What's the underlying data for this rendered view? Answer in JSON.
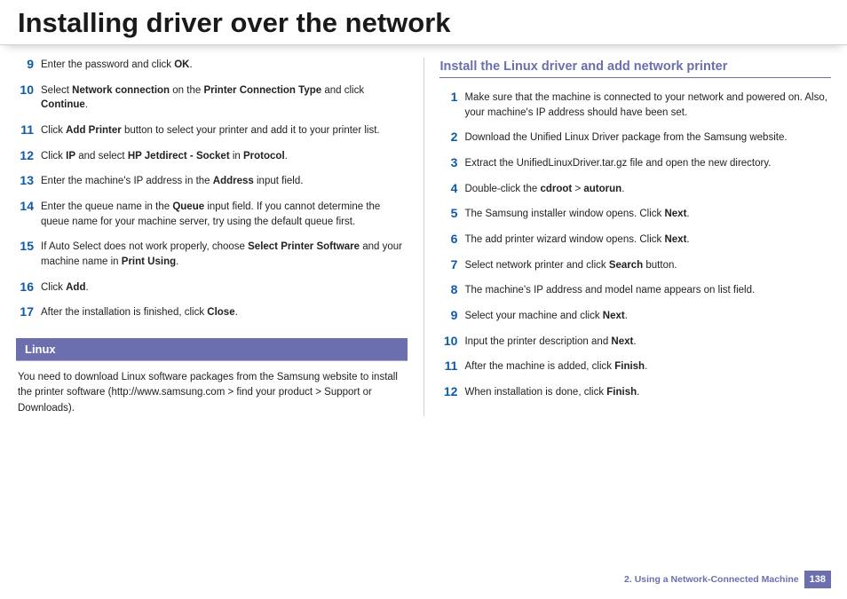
{
  "colors": {
    "accent_blue": "#0d5aa8",
    "accent_purple": "#6b6fad",
    "text": "#222222",
    "title": "#1a1a1a"
  },
  "title": "Installing driver over the network",
  "left": {
    "steps": [
      {
        "num": "9",
        "html": "Enter the password and click <b>OK</b>."
      },
      {
        "num": "10",
        "html": "Select <b>Network connection</b> on the <b>Printer Connection Type</b> and click <b>Continue</b>."
      },
      {
        "num": "11",
        "html": "Click <b>Add Printer</b> button to select your printer and add it to your printer list."
      },
      {
        "num": "12",
        "html": "Click <b>IP</b> and select <b>HP Jetdirect - Socket</b> in <b>Protocol</b>."
      },
      {
        "num": "13",
        "html": "Enter the machine's IP address in the <b>Address</b> input field."
      },
      {
        "num": "14",
        "html": "Enter the queue name in the <b>Queue</b> input field. If you cannot determine the queue name for your machine server, try using the default queue first."
      },
      {
        "num": "15",
        "html": "If Auto Select does not work properly, choose <b>Select Printer Software</b> and your machine name in <b>Print Using</b>."
      },
      {
        "num": "16",
        "html": "Click <b>Add</b>."
      },
      {
        "num": "17",
        "html": "After the installation is finished, click <b>Close</b>."
      }
    ],
    "section_label": "Linux",
    "section_text": "You need to download Linux software packages from the Samsung website to install the printer software (http://www.samsung.com > find your product > Support or Downloads)."
  },
  "right": {
    "heading": "Install the Linux driver and add network printer",
    "steps": [
      {
        "num": "1",
        "html": "Make sure that the machine is connected to your network and powered on. Also, your machine's IP address should have been set."
      },
      {
        "num": "2",
        "html": "Download the Unified Linux Driver package from the Samsung website."
      },
      {
        "num": "3",
        "html": "Extract the UnifiedLinuxDriver.tar.gz file and open the new directory."
      },
      {
        "num": "4",
        "html": "Double-click the <b>cdroot</b> > <b>autorun</b>."
      },
      {
        "num": "5",
        "html": "The Samsung installer window opens. Click <b>Next</b>."
      },
      {
        "num": "6",
        "html": "The add printer wizard window opens. Click <b>Next</b>."
      },
      {
        "num": "7",
        "html": "Select network printer and click <b>Search</b> button."
      },
      {
        "num": "8",
        "html": "The machine's IP address and model name appears on list field."
      },
      {
        "num": "9",
        "html": "Select your machine and click <b>Next</b>."
      },
      {
        "num": "10",
        "html": "Input the printer description and <b>Next</b>."
      },
      {
        "num": "11",
        "html": "After the machine is added, click <b>Finish</b>."
      },
      {
        "num": "12",
        "html": "When installation is done, click <b>Finish</b>."
      }
    ]
  },
  "footer": {
    "chapter": "2.  Using a Network-Connected Machine",
    "page": "138"
  }
}
